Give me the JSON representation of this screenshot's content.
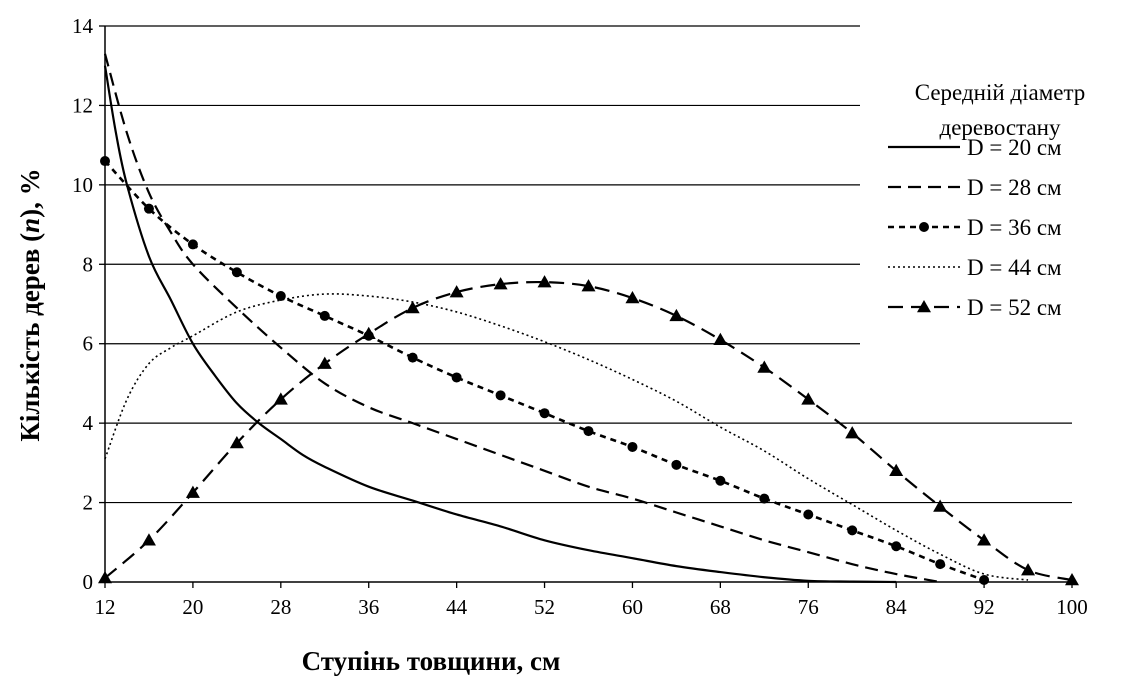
{
  "chart_data": {
    "type": "line",
    "xlabel": "Ступінь товщини, см",
    "ylabel_main": "Кількість дерев (",
    "ylabel_var": "n",
    "ylabel_tail": "), %",
    "xlim": [
      12,
      100
    ],
    "ylim": [
      0,
      14
    ],
    "x_ticks": [
      "12",
      "20",
      "28",
      "36",
      "44",
      "52",
      "60",
      "68",
      "76",
      "84",
      "92",
      "100"
    ],
    "y_ticks": [
      "0",
      "2",
      "4",
      "6",
      "8",
      "10",
      "12",
      "14"
    ],
    "grid": "horizontal",
    "legend_position": "top-right",
    "legend_title": [
      "Середній діаметр",
      "деревостану"
    ],
    "series": [
      {
        "name": "D = 20 см",
        "style": "solid",
        "marker": "none",
        "x": [
          12,
          13,
          14,
          16,
          18,
          20,
          22,
          24,
          26,
          28,
          30,
          32,
          36,
          40,
          44,
          48,
          52,
          56,
          60,
          64,
          68,
          72,
          76,
          80,
          84
        ],
        "y": [
          13.0,
          11.3,
          10.0,
          8.2,
          7.1,
          6.0,
          5.2,
          4.5,
          4.0,
          3.6,
          3.2,
          2.9,
          2.4,
          2.05,
          1.7,
          1.4,
          1.05,
          0.8,
          0.6,
          0.4,
          0.25,
          0.12,
          0.03,
          0.01,
          0.0
        ]
      },
      {
        "name": "D = 28 см",
        "style": "dashed",
        "marker": "none",
        "x": [
          12,
          14,
          16,
          18,
          20,
          24,
          28,
          32,
          36,
          40,
          44,
          48,
          52,
          56,
          60,
          64,
          68,
          72,
          76,
          80,
          84,
          88
        ],
        "y": [
          13.3,
          11.3,
          9.8,
          8.8,
          8.0,
          6.9,
          5.9,
          5.0,
          4.4,
          4.0,
          3.6,
          3.2,
          2.8,
          2.4,
          2.1,
          1.75,
          1.4,
          1.05,
          0.75,
          0.45,
          0.2,
          0.0
        ]
      },
      {
        "name": "D = 36 см",
        "style": "short-dashed",
        "marker": "circle",
        "x": [
          12,
          16,
          20,
          24,
          28,
          32,
          36,
          40,
          44,
          48,
          52,
          56,
          60,
          64,
          68,
          72,
          76,
          80,
          84,
          88,
          92
        ],
        "y": [
          10.6,
          9.4,
          8.5,
          7.8,
          7.2,
          6.7,
          6.2,
          5.65,
          5.15,
          4.7,
          4.25,
          3.8,
          3.4,
          2.95,
          2.55,
          2.1,
          1.7,
          1.3,
          0.9,
          0.45,
          0.05
        ]
      },
      {
        "name": "D = 44 см",
        "style": "dotted",
        "marker": "none",
        "x": [
          12,
          14,
          16,
          18,
          20,
          24,
          28,
          32,
          36,
          40,
          44,
          48,
          52,
          56,
          60,
          64,
          68,
          72,
          76,
          80,
          84,
          88,
          92,
          96
        ],
        "y": [
          3.1,
          4.6,
          5.5,
          5.9,
          6.2,
          6.8,
          7.1,
          7.25,
          7.2,
          7.05,
          6.8,
          6.45,
          6.05,
          5.6,
          5.1,
          4.55,
          3.9,
          3.3,
          2.6,
          1.95,
          1.3,
          0.7,
          0.2,
          0.05
        ]
      },
      {
        "name": "D = 52 см",
        "style": "long-dashed",
        "marker": "triangle",
        "x": [
          12,
          16,
          20,
          24,
          28,
          32,
          36,
          40,
          44,
          48,
          52,
          56,
          60,
          64,
          68,
          72,
          76,
          80,
          84,
          88,
          92,
          96,
          100
        ],
        "y": [
          0.1,
          1.05,
          2.25,
          3.5,
          4.6,
          5.5,
          6.25,
          6.9,
          7.3,
          7.5,
          7.55,
          7.45,
          7.15,
          6.7,
          6.1,
          5.4,
          4.6,
          3.75,
          2.8,
          1.9,
          1.05,
          0.3,
          0.05
        ]
      }
    ]
  }
}
